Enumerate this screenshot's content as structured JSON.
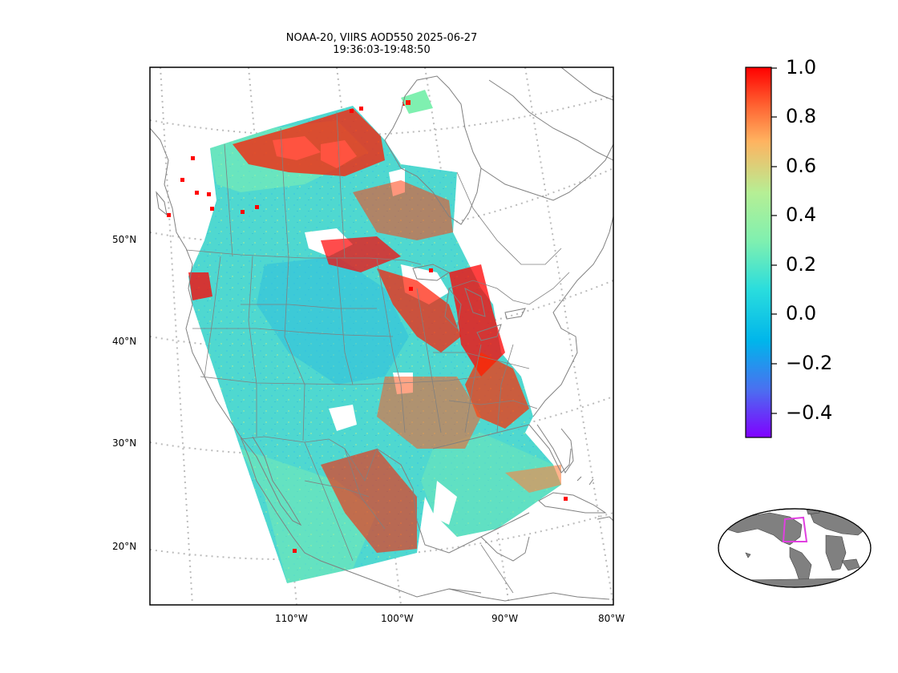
{
  "title": {
    "line1": "NOAA-20, VIIRS AOD550 2025-06-27",
    "line2": "19:36:03-19:48:50"
  },
  "map": {
    "lat_labels": [
      "50°N",
      "40°N",
      "30°N",
      "20°N"
    ],
    "lon_labels": [
      "110°W",
      "100°W",
      "90°W",
      "80°W"
    ],
    "coastline_color": "#808080",
    "gridline_color": "#bbbbbb"
  },
  "colorbar": {
    "colormap": "rainbow",
    "ticks": [
      "1.0",
      "0.8",
      "0.6",
      "0.4",
      "0.2",
      "0.0",
      "−0.2",
      "−0.4"
    ],
    "range": [
      -0.5,
      1.0
    ],
    "colors": [
      "#8000ff",
      "#4a70f0",
      "#00b5eb",
      "#2adddd",
      "#7ff0b0",
      "#b5ef95",
      "#ffb360",
      "#ff6030",
      "#ff0000"
    ]
  },
  "inset": {
    "land_color": "#808080",
    "region_box_color": "#e040e0"
  }
}
